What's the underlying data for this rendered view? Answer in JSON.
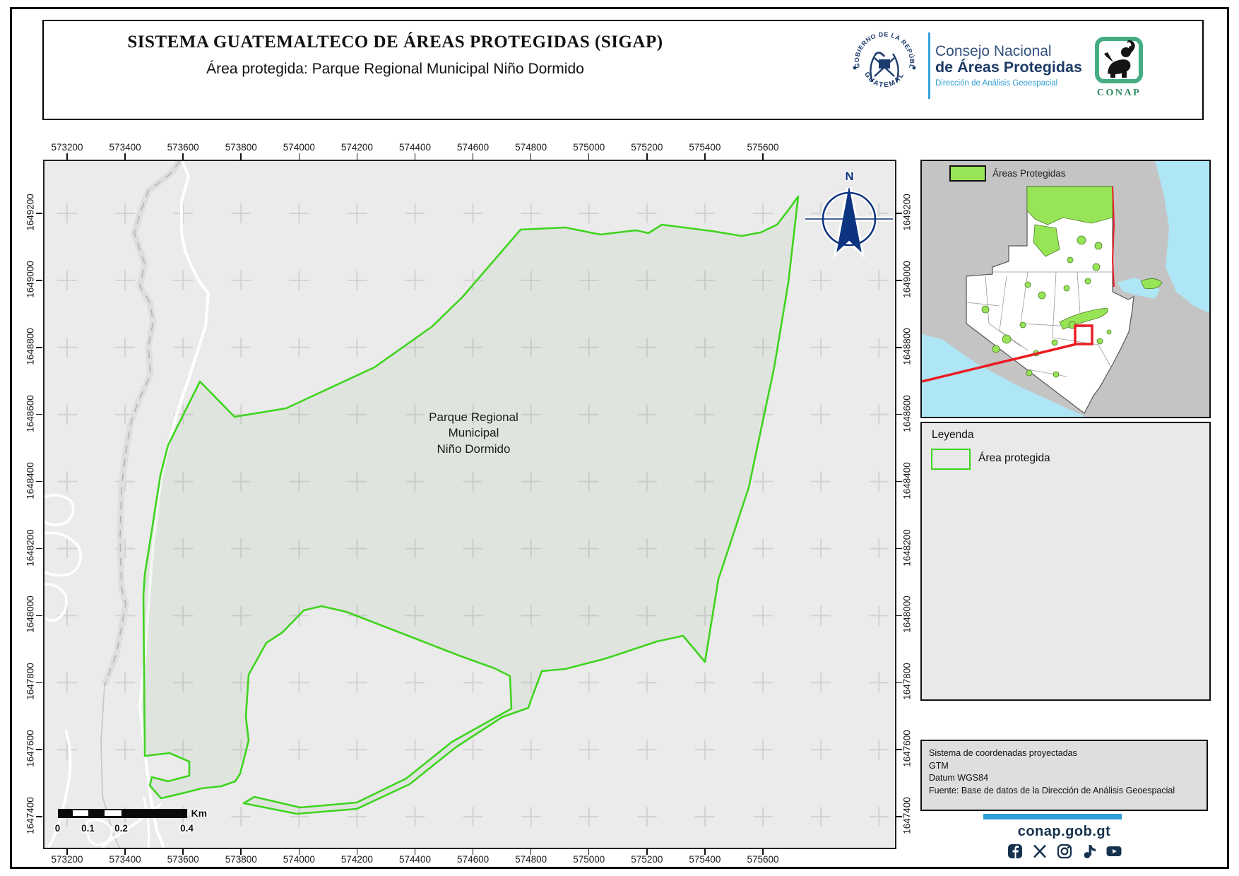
{
  "header": {
    "title": "SISTEMA GUATEMALTECO DE ÁREAS PROTEGIDAS  (SIGAP)",
    "subtitle": "Área protegida: Parque Regional Municipal Niño Dormido",
    "seal_top": "GOBIERNO DE LA REPÚBLICA",
    "seal_bottom": "GUATEMALA",
    "org_line1": "Consejo Nacional",
    "org_line2": "de Áreas Protegidas",
    "org_line3": "Dirección de Análisis Geoespacial",
    "conap_label": "CONAP"
  },
  "map": {
    "x_ticks": [
      "573200",
      "573400",
      "573600",
      "573800",
      "574000",
      "574200",
      "574400",
      "574600",
      "574800",
      "575000",
      "575200",
      "575400",
      "575600"
    ],
    "y_ticks": [
      "1649200",
      "1649000",
      "1648800",
      "1648600",
      "1648400",
      "1648200",
      "1648000",
      "1647800",
      "1647600",
      "1647400"
    ],
    "area_label_lines": [
      "Parque Regional",
      "Municipal",
      "Niño Dormido"
    ],
    "north_label": "N",
    "scale_labels": [
      "0",
      "0.1",
      "0.2",
      "0.4"
    ],
    "scale_unit": "Km",
    "boundary_color": "#3ed41e",
    "background_color": "#ebebeb"
  },
  "inset": {
    "legend_label": "Áreas Protegidas",
    "protected_color": "#97e556",
    "water_color": "#aee6f5",
    "indicator_color": "#ec1c24"
  },
  "legend_panel": {
    "title": "Leyenda",
    "item_label": "Área protegida"
  },
  "info_panel": {
    "line1": "Sistema de coordenadas proyectadas",
    "line2": "GTM",
    "line3": "Datum WGS84",
    "line4": "Fuente: Base de datos de la Dirección de Análisis Geoespacial"
  },
  "footer": {
    "website": "conap.gob.gt",
    "social": [
      "facebook",
      "x",
      "instagram",
      "tiktok",
      "youtube"
    ]
  }
}
